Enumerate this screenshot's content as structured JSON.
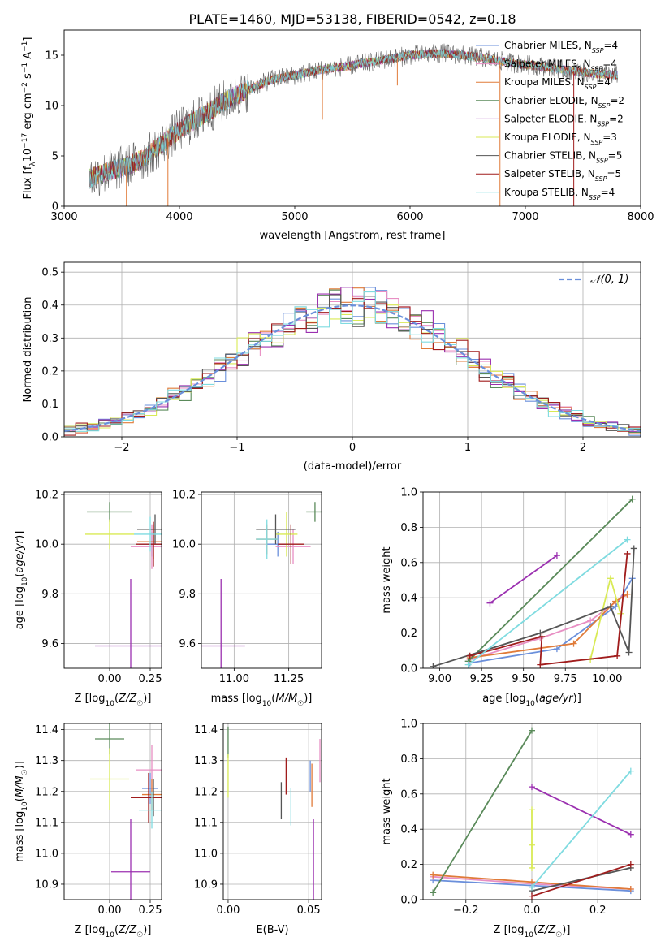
{
  "figure": {
    "title": "PLATE=1460, MJD=53138, FIBERID=0542, z=0.18"
  },
  "colors": {
    "Chabrier MILES": "#6a8fdb",
    "Salpeter MILES": "#e88fc4",
    "Kroupa MILES": "#e07b39",
    "Chabrier ELODIE": "#5a8a5a",
    "Salpeter ELODIE": "#9b30b0",
    "Kroupa ELODIE": "#d9ea55",
    "Chabrier STELIB": "#555555",
    "Salpeter STELIB": "#a01c1c",
    "Kroupa STELIB": "#7fdbe0",
    "normal": "#6a8fdb",
    "grid": "#b0b0b0"
  },
  "chart_data": [
    {
      "id": "spectrum",
      "type": "line",
      "xlabel": "wavelength [Angstrom, rest frame]",
      "ylabel": "Flux [f_λ 10^-17 erg cm^-2 s^-1 A^-1]",
      "xlim": [
        3000,
        8000
      ],
      "ylim": [
        0,
        17.5
      ],
      "xticks": [
        3000,
        4000,
        5000,
        6000,
        7000,
        8000
      ],
      "yticks": [
        0,
        5,
        10,
        15
      ],
      "legend_position": "top-right",
      "legend": [
        {
          "name": "Chabrier MILES",
          "nssp": "4"
        },
        {
          "name": "Salpeter MILES",
          "nssp": "4"
        },
        {
          "name": "Kroupa MILES",
          "nssp": "4"
        },
        {
          "name": "Chabrier ELODIE",
          "nssp": "2"
        },
        {
          "name": "Salpeter ELODIE",
          "nssp": "2"
        },
        {
          "name": "Kroupa ELODIE",
          "nssp": "3"
        },
        {
          "name": "Chabrier STELIB",
          "nssp": "5"
        },
        {
          "name": "Salpeter STELIB",
          "nssp": "5"
        },
        {
          "name": "Kroupa STELIB",
          "nssp": "4"
        }
      ],
      "continuum": [
        [
          3220,
          2.8
        ],
        [
          3400,
          3.5
        ],
        [
          3550,
          4.0
        ],
        [
          3700,
          4.8
        ],
        [
          3850,
          6.2
        ],
        [
          4000,
          7.6
        ],
        [
          4200,
          9.0
        ],
        [
          4400,
          10.5
        ],
        [
          4600,
          11.6
        ],
        [
          4800,
          12.6
        ],
        [
          5000,
          13.0
        ],
        [
          5200,
          13.5
        ],
        [
          5500,
          14.0
        ],
        [
          5800,
          14.6
        ],
        [
          6000,
          15.0
        ],
        [
          6300,
          15.2
        ],
        [
          6600,
          14.8
        ],
        [
          6900,
          14.2
        ],
        [
          7200,
          13.8
        ],
        [
          7500,
          13.3
        ],
        [
          7800,
          13.0
        ]
      ],
      "spikes": [
        [
          3540,
          0
        ],
        [
          3900,
          0
        ],
        [
          5240,
          8.6
        ],
        [
          5890,
          12.0
        ],
        [
          6780,
          0
        ],
        [
          7420,
          0
        ]
      ]
    },
    {
      "id": "residuals",
      "type": "step",
      "xlabel": "(data-model)/error",
      "ylabel": "Normed distribution",
      "xlim": [
        -2.5,
        2.5
      ],
      "ylim": [
        0,
        0.53
      ],
      "xticks": [
        -2,
        -1,
        0,
        1,
        2
      ],
      "yticks": [
        0.0,
        0.1,
        0.2,
        0.3,
        0.4,
        0.5
      ],
      "legend_position": "top-right",
      "normal_label": "𝒩(0, 1)",
      "bin_edges_start": -2.5,
      "bin_width": 0.1
    },
    {
      "id": "age-vs-Z",
      "type": "errorbar",
      "xlabel": "Z [log10(Z/Z☉)]",
      "ylabel": "age  [log10(age/yr)]",
      "xlim": [
        -0.28,
        0.32
      ],
      "ylim": [
        9.5,
        10.21
      ],
      "xticks": [
        0.0,
        0.25
      ],
      "yticks": [
        9.6,
        9.8,
        10.0,
        10.2
      ],
      "points": [
        {
          "series": "Chabrier MILES",
          "x": 0.26,
          "y": 10.0,
          "xerr": 0.08,
          "yerr": 0.05
        },
        {
          "series": "Salpeter MILES",
          "x": 0.26,
          "y": 9.99,
          "xerr": 0.13,
          "yerr": 0.09
        },
        {
          "series": "Kroupa MILES",
          "x": 0.27,
          "y": 10.01,
          "xerr": 0.1,
          "yerr": 0.07
        },
        {
          "series": "Chabrier ELODIE",
          "x": 0.0,
          "y": 10.13,
          "xerr": 0.14,
          "yerr": 0.04
        },
        {
          "series": "Salpeter ELODIE",
          "x": 0.13,
          "y": 9.59,
          "xerr": 0.22,
          "yerr": 0.27
        },
        {
          "series": "Kroupa ELODIE",
          "x": -0.0,
          "y": 10.04,
          "xerr": 0.15,
          "yerr": 0.06
        },
        {
          "series": "Chabrier STELIB",
          "x": 0.28,
          "y": 10.06,
          "xerr": 0.11,
          "yerr": 0.06
        },
        {
          "series": "Salpeter STELIB",
          "x": 0.27,
          "y": 10.0,
          "xerr": 0.11,
          "yerr": 0.09
        },
        {
          "series": "Kroupa STELIB",
          "x": 0.25,
          "y": 10.04,
          "xerr": 0.1,
          "yerr": 0.07
        }
      ]
    },
    {
      "id": "age-vs-mass",
      "type": "errorbar",
      "xlabel": "mass [log10(M/M☉)]",
      "ylabel": "",
      "xlim": [
        10.85,
        11.4
      ],
      "ylim": [
        9.5,
        10.21
      ],
      "xticks": [
        11.0,
        11.25
      ],
      "yticks": [
        9.6,
        9.8,
        10.0,
        10.2
      ],
      "points": [
        {
          "series": "Chabrier MILES",
          "x": 11.2,
          "y": 10.0,
          "xerr": 0.05,
          "yerr": 0.05
        },
        {
          "series": "Salpeter MILES",
          "x": 11.27,
          "y": 9.99,
          "xerr": 0.08,
          "yerr": 0.07
        },
        {
          "series": "Kroupa MILES",
          "x": 11.15,
          "y": 10.02,
          "xerr": 0.05,
          "yerr": 0.06
        },
        {
          "series": "Chabrier ELODIE",
          "x": 11.37,
          "y": 10.13,
          "xerr": 0.04,
          "yerr": 0.04
        },
        {
          "series": "Salpeter ELODIE",
          "x": 10.94,
          "y": 9.59,
          "xerr": 0.11,
          "yerr": 0.27
        },
        {
          "series": "Kroupa ELODIE",
          "x": 11.24,
          "y": 10.04,
          "xerr": 0.05,
          "yerr": 0.09
        },
        {
          "series": "Chabrier STELIB",
          "x": 11.19,
          "y": 10.06,
          "xerr": 0.09,
          "yerr": 0.06
        },
        {
          "series": "Salpeter STELIB",
          "x": 11.26,
          "y": 10.0,
          "xerr": 0.06,
          "yerr": 0.08
        },
        {
          "series": "Kroupa STELIB",
          "x": 11.15,
          "y": 10.02,
          "xerr": 0.05,
          "yerr": 0.08
        }
      ]
    },
    {
      "id": "weight-vs-age",
      "type": "line",
      "xlabel": "age  [log10(age/yr)]",
      "ylabel": "mass weight",
      "xlim": [
        8.9,
        10.2
      ],
      "ylim": [
        0,
        1.0
      ],
      "xticks": [
        9.0,
        9.25,
        9.5,
        9.75,
        10.0
      ],
      "yticks": [
        0.0,
        0.2,
        0.4,
        0.6,
        0.8,
        1.0
      ],
      "series": [
        {
          "name": "Chabrier MILES",
          "x": [
            9.18,
            9.7,
            10.05,
            10.15
          ],
          "y": [
            0.03,
            0.11,
            0.35,
            0.51
          ]
        },
        {
          "name": "Salpeter MILES",
          "x": [
            9.18,
            9.6,
            9.9,
            10.1
          ],
          "y": [
            0.05,
            0.17,
            0.27,
            0.41
          ]
        },
        {
          "name": "Kroupa MILES",
          "x": [
            9.18,
            9.8,
            10.05,
            10.12
          ],
          "y": [
            0.06,
            0.14,
            0.38,
            0.42
          ]
        },
        {
          "name": "Chabrier ELODIE",
          "x": [
            9.17,
            10.15
          ],
          "y": [
            0.04,
            0.96
          ]
        },
        {
          "name": "Salpeter ELODIE",
          "x": [
            9.3,
            9.7
          ],
          "y": [
            0.37,
            0.64
          ]
        },
        {
          "name": "Kroupa ELODIE",
          "x": [
            9.9,
            10.02,
            10.08
          ],
          "y": [
            0.05,
            0.51,
            0.31
          ]
        },
        {
          "name": "Chabrier STELIB",
          "x": [
            8.96,
            9.6,
            10.02,
            10.13,
            10.16
          ],
          "y": [
            0.01,
            0.2,
            0.35,
            0.09,
            0.68
          ]
        },
        {
          "name": "Salpeter STELIB",
          "x": [
            9.18,
            9.61,
            9.6,
            10.06,
            10.12
          ],
          "y": [
            0.07,
            0.18,
            0.02,
            0.07,
            0.65
          ]
        },
        {
          "name": "Kroupa STELIB",
          "x": [
            9.17,
            10.12
          ],
          "y": [
            0.02,
            0.73
          ]
        }
      ]
    },
    {
      "id": "mass-vs-Z",
      "type": "errorbar",
      "xlabel": "Z [log10(Z/Z☉)]",
      "ylabel": "mass [log10(M/M☉)]",
      "xlim": [
        -0.28,
        0.32
      ],
      "ylim": [
        10.85,
        11.42
      ],
      "xticks": [
        0.0,
        0.25
      ],
      "yticks": [
        10.9,
        11.0,
        11.1,
        11.2,
        11.3,
        11.4
      ],
      "points": [
        {
          "series": "Chabrier MILES",
          "x": 0.25,
          "y": 11.21,
          "xerr": 0.05,
          "yerr": 0.05
        },
        {
          "series": "Salpeter MILES",
          "x": 0.26,
          "y": 11.27,
          "xerr": 0.1,
          "yerr": 0.08
        },
        {
          "series": "Kroupa MILES",
          "x": 0.26,
          "y": 11.19,
          "xerr": 0.06,
          "yerr": 0.05
        },
        {
          "series": "Chabrier ELODIE",
          "x": 0.0,
          "y": 11.37,
          "xerr": 0.09,
          "yerr": 0.05
        },
        {
          "series": "Salpeter ELODIE",
          "x": 0.13,
          "y": 10.94,
          "xerr": 0.12,
          "yerr": 0.17
        },
        {
          "series": "Kroupa ELODIE",
          "x": 0.0,
          "y": 11.24,
          "xerr": 0.12,
          "yerr": 0.1
        },
        {
          "series": "Chabrier STELIB",
          "x": 0.27,
          "y": 11.18,
          "xerr": 0.05,
          "yerr": 0.06
        },
        {
          "series": "Salpeter STELIB",
          "x": 0.24,
          "y": 11.18,
          "xerr": 0.11,
          "yerr": 0.08
        },
        {
          "series": "Kroupa STELIB",
          "x": 0.26,
          "y": 11.14,
          "xerr": 0.08,
          "yerr": 0.06
        }
      ]
    },
    {
      "id": "mass-vs-EBV",
      "type": "errorbar",
      "xlabel": "E(B-V)",
      "ylabel": "",
      "xlim": [
        -0.003,
        0.058
      ],
      "ylim": [
        10.85,
        11.42
      ],
      "xticks": [
        0.0,
        0.05
      ],
      "yticks": [
        10.9,
        11.0,
        11.1,
        11.2,
        11.3,
        11.4
      ],
      "points": [
        {
          "series": "Chabrier MILES",
          "x": 0.051,
          "y": 11.25,
          "xerr": 0.0,
          "yerr": 0.05
        },
        {
          "series": "Salpeter MILES",
          "x": 0.057,
          "y": 11.3,
          "xerr": 0.0,
          "yerr": 0.07
        },
        {
          "series": "Kroupa MILES",
          "x": 0.052,
          "y": 11.22,
          "xerr": 0.0,
          "yerr": 0.07
        },
        {
          "series": "Chabrier ELODIE",
          "x": 0.0,
          "y": 11.36,
          "xerr": 0.0,
          "yerr": 0.05
        },
        {
          "series": "Salpeter ELODIE",
          "x": 0.053,
          "y": 10.95,
          "xerr": 0.0,
          "yerr": 0.16
        },
        {
          "series": "Kroupa ELODIE",
          "x": 0.0,
          "y": 11.25,
          "xerr": 0.0,
          "yerr": 0.07
        },
        {
          "series": "Chabrier STELIB",
          "x": 0.033,
          "y": 11.17,
          "xerr": 0.0,
          "yerr": 0.06
        },
        {
          "series": "Salpeter STELIB",
          "x": 0.036,
          "y": 11.25,
          "xerr": 0.0,
          "yerr": 0.06
        },
        {
          "series": "Kroupa STELIB",
          "x": 0.039,
          "y": 11.15,
          "xerr": 0.0,
          "yerr": 0.06
        }
      ]
    },
    {
      "id": "weight-vs-Z",
      "type": "line",
      "xlabel": "Z [log10(Z/Z☉)]",
      "ylabel": "mass weight",
      "xlim": [
        -0.33,
        0.33
      ],
      "ylim": [
        0,
        1.0
      ],
      "xticks": [
        -0.2,
        0.0,
        0.2
      ],
      "yticks": [
        0.0,
        0.2,
        0.4,
        0.6,
        0.8,
        1.0
      ],
      "series": [
        {
          "name": "Chabrier MILES",
          "x": [
            -0.3,
            0.0,
            0.3
          ],
          "y": [
            0.11,
            0.08,
            0.05
          ]
        },
        {
          "name": "Salpeter MILES",
          "x": [
            -0.3,
            0.0,
            0.3
          ],
          "y": [
            0.13,
            0.09,
            0.06
          ]
        },
        {
          "name": "Kroupa MILES",
          "x": [
            -0.3,
            0.0,
            0.3
          ],
          "y": [
            0.14,
            0.1,
            0.06
          ]
        },
        {
          "name": "Chabrier ELODIE",
          "x": [
            -0.3,
            0.0
          ],
          "y": [
            0.04,
            0.96
          ]
        },
        {
          "name": "Salpeter ELODIE",
          "x": [
            0.0,
            0.3
          ],
          "y": [
            0.64,
            0.37
          ]
        },
        {
          "name": "Kroupa ELODIE",
          "x": [
            0.0,
            0.0,
            0.0
          ],
          "y": [
            0.51,
            0.31,
            0.18
          ]
        },
        {
          "name": "Chabrier STELIB",
          "x": [
            0.0,
            0.3
          ],
          "y": [
            0.05,
            0.18
          ]
        },
        {
          "name": "Salpeter STELIB",
          "x": [
            0.0,
            0.3
          ],
          "y": [
            0.02,
            0.2
          ]
        },
        {
          "name": "Kroupa STELIB",
          "x": [
            0.0,
            0.3
          ],
          "y": [
            0.07,
            0.73
          ]
        }
      ]
    }
  ]
}
